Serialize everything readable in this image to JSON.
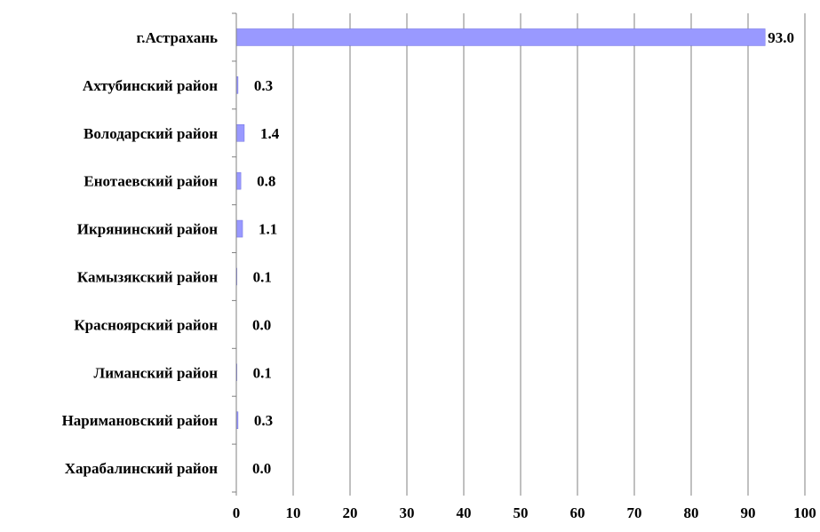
{
  "chart_data": {
    "type": "bar",
    "orientation": "horizontal",
    "categories": [
      "г.Астрахань",
      "Ахтубинский район",
      "Володарский район",
      "Енотаевский район",
      "Икрянинский район",
      "Камызякский район",
      "Красноярский район",
      "Лиманский район",
      "Наримановский район",
      "Харабалинский район"
    ],
    "values": [
      93.0,
      0.3,
      1.4,
      0.8,
      1.1,
      0.1,
      0.0,
      0.1,
      0.3,
      0.0
    ],
    "value_labels": [
      "93.0",
      "0.3",
      "1.4",
      "0.8",
      "1.1",
      "0.1",
      "0.0",
      "0.1",
      "0.3",
      "0.0"
    ],
    "xlim": [
      0,
      100
    ],
    "x_ticks": [
      0,
      10,
      20,
      30,
      40,
      50,
      60,
      70,
      80,
      90,
      100
    ],
    "x_tick_labels": [
      "0",
      "10",
      "20",
      "30",
      "40",
      "50",
      "60",
      "70",
      "80",
      "90",
      "100"
    ],
    "grid": "vertical",
    "legend": "none",
    "colors": {
      "bar_fill": "#9999ff",
      "bar_stroke": "#7070e0",
      "grid": "#808080",
      "text": "#000000"
    }
  }
}
